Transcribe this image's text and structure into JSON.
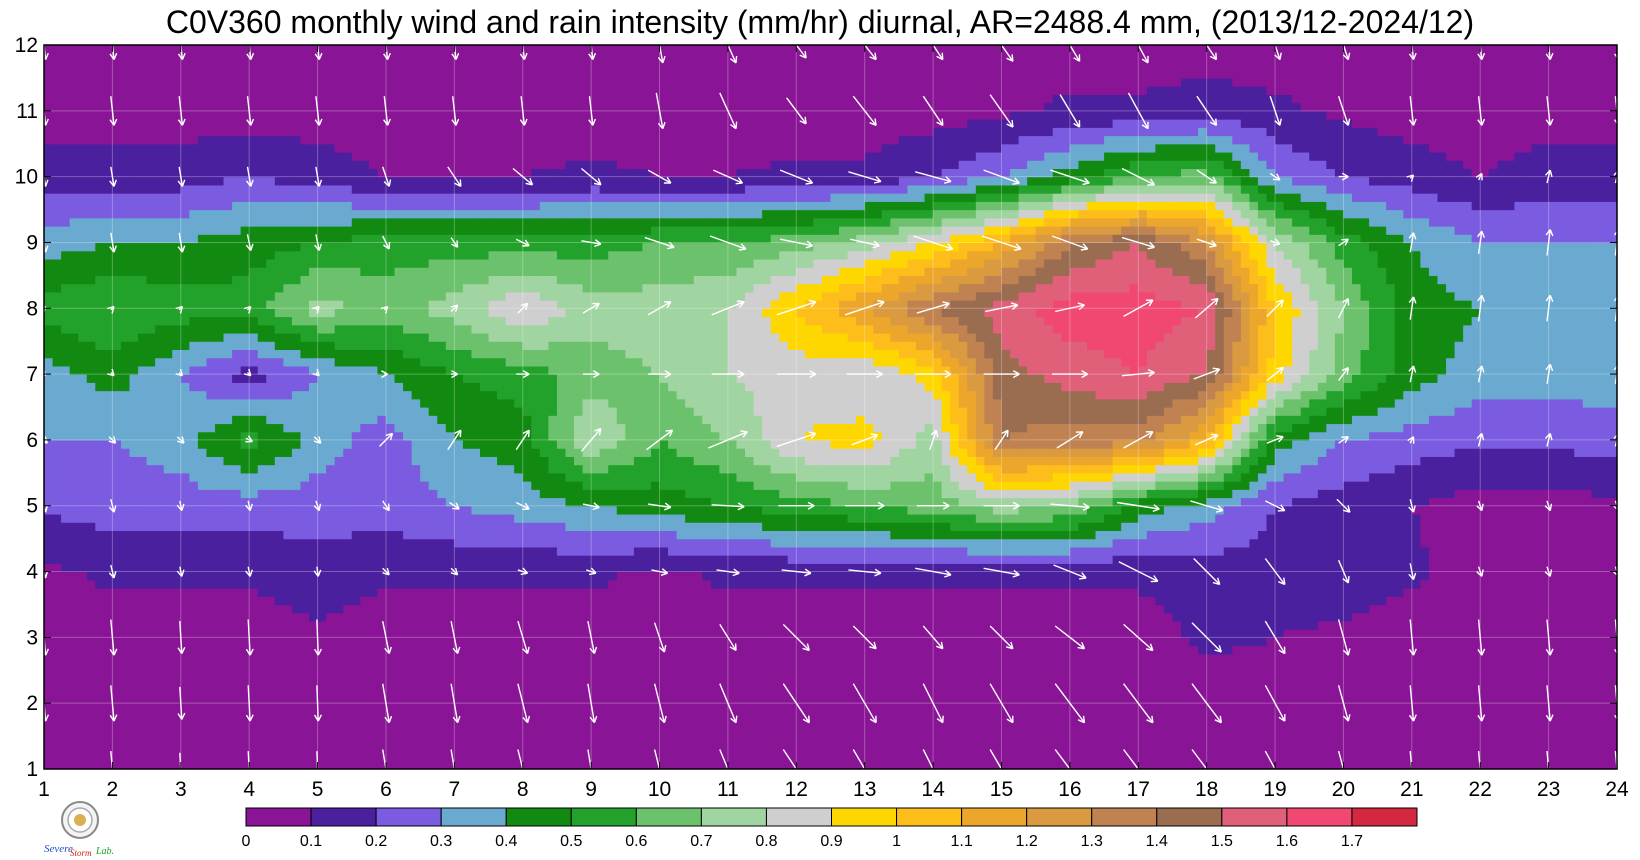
{
  "chart_data": {
    "type": "heatmap",
    "subtype": "filled-contour-with-wind-vectors",
    "title": "C0V360 monthly wind and rain intensity (mm/hr) diurnal, AR=2488.4 mm, (2013/12-2024/12)",
    "xlabel": "",
    "ylabel": "",
    "xlim": [
      1,
      24
    ],
    "ylim": [
      1,
      12
    ],
    "x_ticks": [
      "1",
      "2",
      "3",
      "4",
      "5",
      "6",
      "7",
      "8",
      "9",
      "10",
      "11",
      "12",
      "13",
      "14",
      "15",
      "16",
      "17",
      "18",
      "19",
      "20",
      "21",
      "22",
      "23",
      "24"
    ],
    "y_ticks": [
      "1",
      "2",
      "3",
      "4",
      "5",
      "6",
      "7",
      "8",
      "9",
      "10",
      "11",
      "12"
    ],
    "grid": true,
    "levels": [
      0,
      0.1,
      0.2,
      0.3,
      0.4,
      0.5,
      0.6,
      0.7,
      0.8,
      0.9,
      1,
      1.1,
      1.2,
      1.3,
      1.4,
      1.5,
      1.6,
      1.7
    ],
    "colorbar_labels": [
      "0",
      "0.1",
      "0.2",
      "0.3",
      "0.4",
      "0.5",
      "0.6",
      "0.7",
      "0.8",
      "0.9",
      "1",
      "1.1",
      "1.2",
      "1.3",
      "1.4",
      "1.5",
      "1.6",
      "1.7"
    ],
    "colors": [
      "#8a1496",
      "#4b209e",
      "#7b5ce0",
      "#6aaad0",
      "#128a12",
      "#22a22a",
      "#6cc26c",
      "#a0d4a0",
      "#cfcfcf",
      "#ffd700",
      "#fdbd1a",
      "#eca62c",
      "#d99a40",
      "#c08250",
      "#9a6c50",
      "#e0607a",
      "#f04870",
      "#d42840"
    ],
    "contour_line_color": "#f0a020",
    "vector_color": "#ffffff",
    "rain_mm_hr": [
      [
        0.05,
        0.05,
        0.05,
        0.05,
        0.05,
        0.05,
        0.05,
        0.05,
        0.05,
        0.05,
        0.05,
        0.05,
        0.05,
        0.05,
        0.05,
        0.05,
        0.05,
        0.05,
        0.05,
        0.05,
        0.05,
        0.05,
        0.05,
        0.05
      ],
      [
        0.05,
        0.05,
        0.05,
        0.05,
        0.05,
        0.05,
        0.05,
        0.05,
        0.05,
        0.05,
        0.05,
        0.05,
        0.05,
        0.05,
        0.05,
        0.05,
        0.05,
        0.05,
        0.05,
        0.05,
        0.05,
        0.05,
        0.05,
        0.05
      ],
      [
        0.05,
        0.05,
        0.05,
        0.05,
        0.08,
        0.05,
        0.05,
        0.05,
        0.05,
        0.05,
        0.05,
        0.05,
        0.05,
        0.05,
        0.05,
        0.05,
        0.05,
        0.12,
        0.1,
        0.08,
        0.05,
        0.05,
        0.05,
        0.05
      ],
      [
        0.08,
        0.12,
        0.12,
        0.12,
        0.15,
        0.12,
        0.12,
        0.12,
        0.12,
        0.08,
        0.12,
        0.12,
        0.12,
        0.12,
        0.12,
        0.12,
        0.12,
        0.15,
        0.15,
        0.15,
        0.12,
        0.05,
        0.05,
        0.05
      ],
      [
        0.22,
        0.25,
        0.25,
        0.25,
        0.25,
        0.25,
        0.3,
        0.35,
        0.4,
        0.45,
        0.5,
        0.55,
        0.6,
        0.65,
        0.75,
        0.7,
        0.45,
        0.35,
        0.2,
        0.15,
        0.1,
        0.05,
        0.05,
        0.08
      ],
      [
        0.3,
        0.3,
        0.35,
        0.55,
        0.35,
        0.25,
        0.4,
        0.45,
        0.8,
        0.6,
        0.7,
        0.9,
        0.95,
        0.75,
        1.4,
        1.35,
        1.35,
        1.1,
        0.45,
        0.3,
        0.25,
        0.22,
        0.22,
        0.25
      ],
      [
        0.35,
        0.45,
        0.3,
        0.15,
        0.3,
        0.4,
        0.5,
        0.55,
        0.65,
        0.7,
        0.8,
        0.85,
        0.8,
        0.95,
        1.45,
        1.55,
        1.6,
        1.5,
        0.95,
        0.65,
        0.45,
        0.35,
        0.35,
        0.35
      ],
      [
        0.55,
        0.6,
        0.55,
        0.55,
        0.75,
        0.65,
        0.75,
        0.9,
        0.75,
        0.75,
        0.8,
        1.0,
        1.2,
        1.4,
        1.55,
        1.65,
        1.65,
        1.6,
        1.0,
        0.7,
        0.45,
        0.4,
        0.35,
        0.35
      ],
      [
        0.35,
        0.4,
        0.4,
        0.45,
        0.5,
        0.55,
        0.55,
        0.55,
        0.55,
        0.6,
        0.6,
        0.65,
        0.75,
        0.9,
        1.1,
        1.4,
        1.5,
        1.3,
        0.8,
        0.55,
        0.4,
        0.3,
        0.3,
        0.3
      ],
      [
        0.15,
        0.15,
        0.15,
        0.2,
        0.15,
        0.1,
        0.1,
        0.1,
        0.12,
        0.1,
        0.1,
        0.12,
        0.12,
        0.2,
        0.3,
        0.45,
        0.6,
        0.65,
        0.3,
        0.2,
        0.15,
        0.1,
        0.15,
        0.15
      ],
      [
        0.05,
        0.05,
        0.05,
        0.05,
        0.05,
        0.05,
        0.05,
        0.05,
        0.05,
        0.05,
        0.05,
        0.05,
        0.05,
        0.05,
        0.08,
        0.12,
        0.12,
        0.15,
        0.12,
        0.08,
        0.05,
        0.05,
        0.05,
        0.05
      ],
      [
        0.05,
        0.05,
        0.05,
        0.05,
        0.05,
        0.05,
        0.05,
        0.05,
        0.05,
        0.05,
        0.05,
        0.05,
        0.05,
        0.05,
        0.05,
        0.05,
        0.05,
        0.05,
        0.05,
        0.05,
        0.05,
        0.05,
        0.05,
        0.05
      ]
    ],
    "wind_u": [
      [
        0.05,
        0.05,
        0.03,
        0.03,
        0.02,
        0.1,
        0.1,
        0.15,
        0.1,
        0.15,
        0.25,
        0.4,
        0.35,
        0.3,
        0.35,
        0.45,
        0.45,
        0.45,
        0.3,
        0.15,
        0.05,
        0.05,
        0.05,
        0.05
      ],
      [
        0.05,
        0.05,
        0.03,
        0.03,
        0.02,
        0.1,
        0.1,
        0.15,
        0.1,
        0.15,
        0.25,
        0.4,
        0.35,
        0.3,
        0.35,
        0.45,
        0.45,
        0.45,
        0.3,
        0.15,
        0.05,
        0.05,
        0.05,
        0.05
      ],
      [
        0.05,
        0.05,
        0.03,
        0.03,
        0.02,
        0.1,
        0.1,
        0.15,
        0.1,
        0.15,
        0.25,
        0.4,
        0.35,
        0.3,
        0.35,
        0.45,
        0.45,
        0.45,
        0.3,
        0.15,
        0.05,
        0.05,
        0.05,
        0.05
      ],
      [
        0.05,
        0.05,
        0.03,
        0.03,
        0.02,
        0.1,
        0.1,
        0.15,
        0.15,
        0.25,
        0.35,
        0.45,
        0.5,
        0.55,
        0.55,
        0.5,
        0.6,
        0.4,
        0.3,
        0.15,
        0.05,
        0.05,
        0.05,
        0.05
      ],
      [
        0.05,
        0.05,
        0.03,
        0.03,
        0.05,
        0.1,
        0.15,
        0.2,
        0.25,
        0.35,
        0.5,
        0.55,
        0.6,
        0.5,
        0.55,
        0.6,
        0.65,
        0.5,
        0.3,
        0.2,
        0.05,
        0.05,
        0.05,
        0.05
      ],
      [
        0.1,
        0.1,
        0.1,
        0.1,
        0.1,
        0.2,
        0.2,
        0.2,
        0.3,
        0.4,
        0.6,
        0.6,
        0.4,
        0.1,
        0.2,
        0.4,
        0.45,
        0.35,
        0.25,
        0.15,
        0.05,
        0.05,
        0.05,
        0.05
      ],
      [
        0.05,
        0.05,
        0.05,
        0.05,
        0.05,
        0.05,
        0.1,
        0.2,
        0.25,
        0.35,
        0.5,
        0.6,
        0.55,
        0.55,
        0.55,
        0.55,
        0.5,
        0.4,
        0.25,
        0.15,
        0.05,
        0.05,
        0.05,
        0.05
      ],
      [
        0.05,
        0.05,
        0.05,
        0.05,
        0.05,
        0.05,
        0.1,
        0.15,
        0.25,
        0.35,
        0.5,
        0.6,
        0.6,
        0.5,
        0.5,
        0.45,
        0.45,
        0.35,
        0.25,
        0.15,
        0.05,
        0.05,
        0.05,
        0.05
      ],
      [
        0.05,
        0.05,
        0.05,
        0.05,
        0.05,
        0.1,
        0.1,
        0.2,
        0.3,
        0.45,
        0.55,
        0.5,
        0.45,
        0.6,
        0.6,
        0.55,
        0.5,
        0.3,
        0.15,
        0.15,
        0.05,
        0.05,
        0.05,
        0.05
      ],
      [
        0.05,
        0.05,
        0.05,
        0.05,
        0.05,
        0.1,
        0.2,
        0.3,
        0.3,
        0.35,
        0.45,
        0.5,
        0.5,
        0.55,
        0.55,
        0.6,
        0.5,
        0.3,
        0.15,
        0.15,
        0.05,
        0.05,
        0.05,
        0.05
      ],
      [
        0.05,
        0.05,
        0.05,
        0.05,
        0.05,
        0.05,
        0.05,
        0.05,
        0.05,
        0.1,
        0.25,
        0.3,
        0.35,
        0.3,
        0.35,
        0.3,
        0.3,
        0.3,
        0.15,
        0.15,
        0.05,
        0.05,
        0.05,
        0.05
      ],
      [
        0.05,
        0.05,
        0.05,
        0.05,
        0.05,
        0.05,
        0.05,
        0.05,
        0.05,
        0.1,
        0.25,
        0.3,
        0.35,
        0.3,
        0.35,
        0.3,
        0.3,
        0.3,
        0.15,
        0.15,
        0.05,
        0.05,
        0.05,
        0.05
      ]
    ],
    "wind_v": [
      [
        -0.55,
        -0.55,
        -0.5,
        -0.55,
        -0.55,
        -0.6,
        -0.6,
        -0.6,
        -0.6,
        -0.6,
        -0.6,
        -0.6,
        -0.6,
        -0.6,
        -0.6,
        -0.6,
        -0.6,
        -0.6,
        -0.55,
        -0.55,
        -0.55,
        -0.55,
        -0.55,
        -0.55
      ],
      [
        -0.55,
        -0.55,
        -0.5,
        -0.55,
        -0.55,
        -0.6,
        -0.6,
        -0.6,
        -0.6,
        -0.6,
        -0.6,
        -0.6,
        -0.6,
        -0.6,
        -0.6,
        -0.6,
        -0.6,
        -0.6,
        -0.55,
        -0.55,
        -0.55,
        -0.55,
        -0.55,
        -0.55
      ],
      [
        -0.55,
        -0.55,
        -0.5,
        -0.55,
        -0.55,
        -0.5,
        -0.5,
        -0.5,
        -0.5,
        -0.45,
        -0.4,
        -0.4,
        -0.35,
        -0.35,
        -0.35,
        -0.35,
        -0.4,
        -0.45,
        -0.5,
        -0.55,
        -0.55,
        -0.55,
        -0.55,
        -0.55
      ],
      [
        -0.2,
        -0.2,
        -0.15,
        -0.15,
        -0.15,
        -0.1,
        -0.1,
        -0.05,
        -0.05,
        -0.05,
        -0.05,
        -0.05,
        -0.05,
        -0.1,
        -0.1,
        -0.2,
        -0.3,
        -0.4,
        -0.4,
        -0.35,
        -0.25,
        -0.15,
        -0.15,
        -0.15
      ],
      [
        -0.2,
        -0.2,
        -0.15,
        -0.15,
        -0.15,
        -0.15,
        -0.1,
        -0.1,
        -0.05,
        -0.05,
        -0.03,
        0.0,
        0.0,
        0.0,
        0.0,
        -0.05,
        -0.1,
        -0.15,
        -0.15,
        -0.2,
        -0.2,
        -0.15,
        -0.15,
        -0.15
      ],
      [
        -0.1,
        -0.1,
        -0.1,
        -0.05,
        -0.1,
        0.2,
        0.3,
        0.3,
        0.35,
        0.3,
        0.25,
        0.2,
        0.15,
        0.3,
        0.3,
        0.25,
        0.25,
        0.15,
        0.1,
        0.1,
        0.1,
        0.2,
        0.2,
        0.2
      ],
      [
        -0.05,
        -0.05,
        -0.05,
        -0.05,
        -0.05,
        0.0,
        0.0,
        0.0,
        0.0,
        0.0,
        0.0,
        0.0,
        0.0,
        0.0,
        0.0,
        0.0,
        0.05,
        0.15,
        0.2,
        0.2,
        0.25,
        0.25,
        0.3,
        0.3
      ],
      [
        0.05,
        0.05,
        0.05,
        0.05,
        0.05,
        0.05,
        0.1,
        0.15,
        0.15,
        0.2,
        0.2,
        0.2,
        0.2,
        0.15,
        0.1,
        0.1,
        0.25,
        0.3,
        0.25,
        0.3,
        0.35,
        0.4,
        0.4,
        0.4
      ],
      [
        -0.3,
        -0.3,
        -0.3,
        -0.25,
        -0.25,
        -0.2,
        -0.15,
        -0.1,
        -0.05,
        -0.15,
        -0.2,
        -0.1,
        -0.1,
        -0.2,
        -0.2,
        -0.2,
        -0.15,
        -0.1,
        -0.05,
        0.1,
        0.3,
        0.35,
        0.4,
        0.4
      ],
      [
        -0.3,
        -0.3,
        -0.3,
        -0.3,
        -0.3,
        -0.3,
        -0.3,
        -0.25,
        -0.25,
        -0.2,
        -0.2,
        -0.2,
        -0.15,
        -0.15,
        -0.2,
        -0.2,
        -0.25,
        -0.2,
        -0.1,
        0.0,
        0.05,
        0.1,
        0.2,
        0.2
      ],
      [
        -0.45,
        -0.45,
        -0.45,
        -0.45,
        -0.45,
        -0.45,
        -0.45,
        -0.45,
        -0.45,
        -0.55,
        -0.55,
        -0.4,
        -0.45,
        -0.45,
        -0.5,
        -0.5,
        -0.55,
        -0.45,
        -0.45,
        -0.45,
        -0.45,
        -0.45,
        -0.45,
        -0.45
      ],
      [
        -0.45,
        -0.45,
        -0.45,
        -0.45,
        -0.45,
        -0.45,
        -0.45,
        -0.45,
        -0.45,
        -0.55,
        -0.55,
        -0.4,
        -0.45,
        -0.45,
        -0.5,
        -0.5,
        -0.55,
        -0.45,
        -0.45,
        -0.45,
        -0.45,
        -0.45,
        -0.45,
        -0.45
      ]
    ]
  },
  "logo": {
    "text1": "Severe",
    "text2": "Storm",
    "text3": "Lab."
  }
}
